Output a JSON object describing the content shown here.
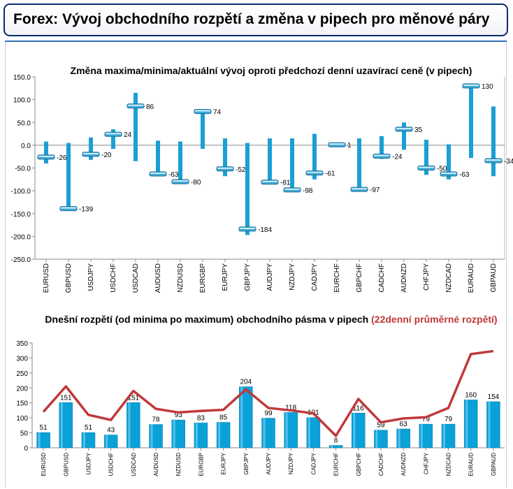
{
  "page_title": "Forex: Vývoj obchodního rozpětí a změna v pipech pro měnové páry",
  "chart_data": [
    {
      "type": "range-bar",
      "title": "Změna maxima/minima/aktuální vývoj oproti předchozí denní uzavírací ceně (v pipech)",
      "ylim": [
        -250,
        150
      ],
      "yticks": [
        "150.0",
        "100.0",
        "50.0",
        "0.0",
        "-50.0",
        "-100.0",
        "-150.0",
        "-200.0",
        "-250.0"
      ],
      "categories": [
        "EURUSD",
        "GBPUSD",
        "USDJPY",
        "USDCHF",
        "USDCAD",
        "AUDUSD",
        "NZDUSD",
        "EURGBP",
        "EURJPY",
        "GBPJPY",
        "AUDJPY",
        "NZDJPY",
        "CADJPY",
        "EURCHF",
        "GBPCHF",
        "CADCHF",
        "AUDNZD",
        "CHFJPY",
        "NZDCAD",
        "EURAUD",
        "GBPAUD"
      ],
      "high": [
        8,
        5,
        17,
        35,
        115,
        10,
        8,
        74,
        15,
        5,
        15,
        15,
        25,
        1,
        15,
        20,
        50,
        12,
        2,
        132,
        85
      ],
      "low": [
        -40,
        -142,
        -32,
        -8,
        -35,
        -68,
        -82,
        -8,
        -68,
        -197,
        -85,
        -101,
        -75,
        -1,
        -100,
        -30,
        -10,
        -65,
        -75,
        -28,
        -68
      ],
      "current": [
        -26,
        -139,
        -20,
        24,
        86,
        -63,
        -80,
        74,
        -52,
        -184,
        -81,
        -98,
        -61,
        1,
        -97,
        -24,
        35,
        -50,
        -63,
        130,
        -34
      ],
      "labels": [
        "-26",
        "-139",
        "-20",
        "24",
        "86",
        "-63",
        "-80",
        "74",
        "-52",
        "-184",
        "-81",
        "-98",
        "-61",
        "1",
        "-97",
        "-24",
        "35",
        "-50",
        "-63",
        "130",
        "-34"
      ]
    },
    {
      "type": "bar",
      "title": "Dnešní rozpětí (od minima po maximum) obchodního pásma v pipech",
      "title_highlight": "(22denní průměrné rozpětí)",
      "ylim": [
        0,
        350
      ],
      "yticks": [
        "350",
        "300",
        "250",
        "200",
        "150",
        "100",
        "50",
        "0"
      ],
      "categories": [
        "EURUSD",
        "GBPUSD",
        "USDJPY",
        "USDCHF",
        "USDCAD",
        "AUDUSD",
        "NZDUSD",
        "EURGBP",
        "EURJPY",
        "GBPJPY",
        "AUDJPY",
        "NZDJPY",
        "CADJPY",
        "EURCHF",
        "GBPCHF",
        "CADCHF",
        "AUDNZD",
        "CHFJPY",
        "NZDCAD",
        "EURAUD",
        "GBPAUD"
      ],
      "series": [
        {
          "values": [
            51,
            151,
            51,
            43,
            151,
            78,
            93,
            83,
            85,
            204,
            99,
            118,
            101,
            8,
            116,
            59,
            63,
            79,
            79,
            160,
            154
          ],
          "labels": [
            "51",
            "151",
            "51",
            "43",
            "151",
            "78",
            "93",
            "83",
            "85",
            "204",
            "99",
            "118",
            "101",
            "8",
            "116",
            "59",
            "63",
            "79",
            "79",
            "160",
            "154"
          ]
        },
        {
          "values": [
            120,
            205,
            110,
            93,
            190,
            130,
            118,
            123,
            127,
            195,
            133,
            125,
            115,
            40,
            163,
            85,
            98,
            102,
            133,
            313,
            323
          ]
        }
      ],
      "colors": {
        "bar": "#0aa0d8",
        "avg_line": "#c0393b",
        "range_bar": "#1a9fd6",
        "title_highlight": "#c0393b"
      }
    }
  ]
}
